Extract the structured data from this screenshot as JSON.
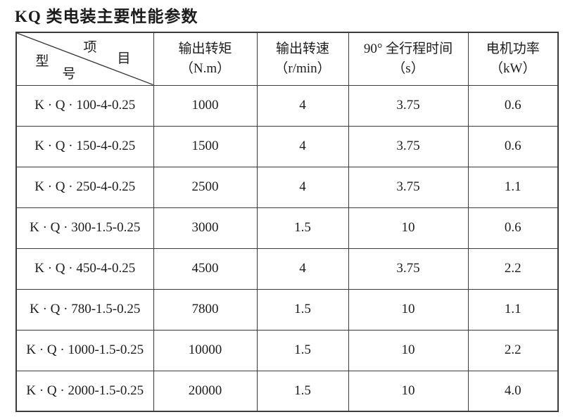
{
  "title": "KQ 类电装主要性能参数",
  "table": {
    "corner": {
      "item_char1": "项",
      "item_char2": "目",
      "model_char1": "型",
      "model_char2": "号"
    },
    "columns": [
      {
        "line1": "输出转矩",
        "line2": "（N.m）"
      },
      {
        "line1": "输出转速",
        "line2": "（r/min）"
      },
      {
        "line1": "90° 全行程时间",
        "line2": "（s）"
      },
      {
        "line1": "电机功率",
        "line2": "（kW）"
      }
    ],
    "rows": [
      {
        "model": "K · Q · 100-4-0.25",
        "torque": "1000",
        "speed": "4",
        "time": "3.75",
        "power": "0.6"
      },
      {
        "model": "K · Q · 150-4-0.25",
        "torque": "1500",
        "speed": "4",
        "time": "3.75",
        "power": "0.6"
      },
      {
        "model": "K · Q · 250-4-0.25",
        "torque": "2500",
        "speed": "4",
        "time": "3.75",
        "power": "1.1"
      },
      {
        "model": "K · Q · 300-1.5-0.25",
        "torque": "3000",
        "speed": "1.5",
        "time": "10",
        "power": "0.6"
      },
      {
        "model": "K · Q · 450-4-0.25",
        "torque": "4500",
        "speed": "4",
        "time": "3.75",
        "power": "2.2"
      },
      {
        "model": "K · Q · 780-1.5-0.25",
        "torque": "7800",
        "speed": "1.5",
        "time": "10",
        "power": "1.1"
      },
      {
        "model": "K · Q · 1000-1.5-0.25",
        "torque": "10000",
        "speed": "1.5",
        "time": "10",
        "power": "2.2"
      },
      {
        "model": "K · Q · 2000-1.5-0.25",
        "torque": "20000",
        "speed": "1.5",
        "time": "10",
        "power": "4.0"
      }
    ]
  },
  "colors": {
    "border": "#3b3b3b",
    "text": "#1c1c1c",
    "background": "#ffffff"
  }
}
